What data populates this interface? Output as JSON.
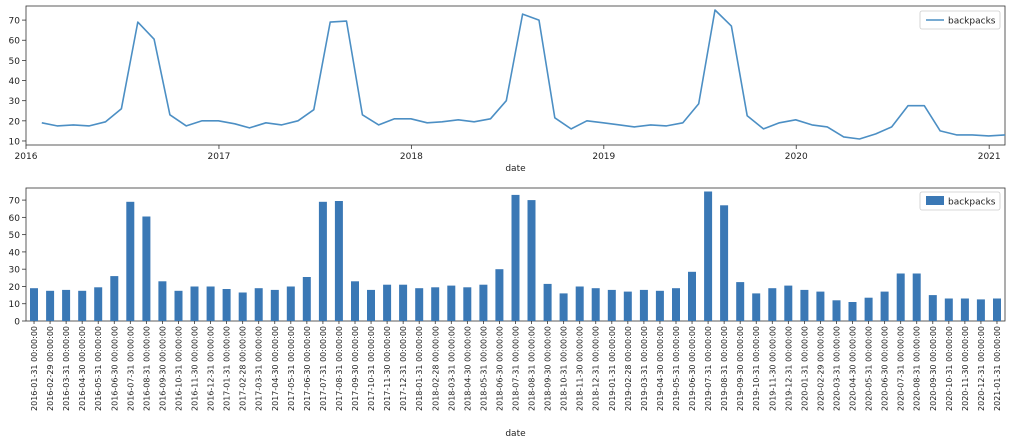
{
  "chart_data": [
    {
      "type": "line",
      "xlabel": "date",
      "ylabel": "",
      "title": "",
      "xlim": [
        "2016-01-01",
        "2021-01-31"
      ],
      "ylim": [
        8,
        77
      ],
      "yticks": [
        10,
        20,
        30,
        40,
        50,
        60,
        70
      ],
      "xtick_labels": [
        "2016",
        "2017",
        "2018",
        "2019",
        "2020",
        "2021"
      ],
      "legend": {
        "position": "top-right",
        "entries": [
          "backpacks"
        ]
      },
      "color": "#4c8fc4",
      "series": [
        {
          "name": "backpacks",
          "field": "values"
        }
      ]
    },
    {
      "type": "bar",
      "xlabel": "date",
      "ylabel": "",
      "title": "",
      "ylim": [
        0,
        77
      ],
      "yticks": [
        0,
        10,
        20,
        30,
        40,
        50,
        60,
        70
      ],
      "legend": {
        "position": "top-right",
        "entries": [
          "backpacks"
        ]
      },
      "color": "#3a78b5",
      "series": [
        {
          "name": "backpacks",
          "field": "values"
        }
      ]
    }
  ],
  "dates": [
    "2016-01-31 00:00:00",
    "2016-02-29 00:00:00",
    "2016-03-31 00:00:00",
    "2016-04-30 00:00:00",
    "2016-05-31 00:00:00",
    "2016-06-30 00:00:00",
    "2016-07-31 00:00:00",
    "2016-08-31 00:00:00",
    "2016-09-30 00:00:00",
    "2016-10-31 00:00:00",
    "2016-11-30 00:00:00",
    "2016-12-31 00:00:00",
    "2017-01-31 00:00:00",
    "2017-02-28 00:00:00",
    "2017-03-31 00:00:00",
    "2017-04-30 00:00:00",
    "2017-05-31 00:00:00",
    "2017-06-30 00:00:00",
    "2017-07-31 00:00:00",
    "2017-08-31 00:00:00",
    "2017-09-30 00:00:00",
    "2017-10-31 00:00:00",
    "2017-11-30 00:00:00",
    "2017-12-31 00:00:00",
    "2018-01-31 00:00:00",
    "2018-02-28 00:00:00",
    "2018-03-31 00:00:00",
    "2018-04-30 00:00:00",
    "2018-05-31 00:00:00",
    "2018-06-30 00:00:00",
    "2018-07-31 00:00:00",
    "2018-08-31 00:00:00",
    "2018-09-30 00:00:00",
    "2018-10-31 00:00:00",
    "2018-11-30 00:00:00",
    "2018-12-31 00:00:00",
    "2019-01-31 00:00:00",
    "2019-02-28 00:00:00",
    "2019-03-31 00:00:00",
    "2019-04-30 00:00:00",
    "2019-05-31 00:00:00",
    "2019-06-30 00:00:00",
    "2019-07-31 00:00:00",
    "2019-08-31 00:00:00",
    "2019-09-30 00:00:00",
    "2019-10-31 00:00:00",
    "2019-11-30 00:00:00",
    "2019-12-31 00:00:00",
    "2020-01-31 00:00:00",
    "2020-02-29 00:00:00",
    "2020-03-31 00:00:00",
    "2020-04-30 00:00:00",
    "2020-05-31 00:00:00",
    "2020-06-30 00:00:00",
    "2020-07-31 00:00:00",
    "2020-08-31 00:00:00",
    "2020-09-30 00:00:00",
    "2020-10-31 00:00:00",
    "2020-11-30 00:00:00",
    "2020-12-31 00:00:00",
    "2021-01-31 00:00:00"
  ],
  "values": [
    19,
    17.5,
    18,
    17.5,
    19.5,
    26,
    69,
    60.5,
    23,
    17.5,
    20,
    20,
    18.5,
    16.5,
    19,
    18,
    20,
    25.5,
    69,
    69.5,
    23,
    18,
    21,
    21,
    19,
    19.5,
    20.5,
    19.5,
    21,
    30,
    73,
    70,
    21.5,
    16,
    20,
    19,
    18,
    17,
    18,
    17.5,
    19,
    28.5,
    75,
    67,
    22.5,
    16,
    19,
    20.5,
    18,
    17,
    12,
    11,
    13.5,
    17,
    27.5,
    27.5,
    15,
    13,
    13,
    12.5,
    13
  ]
}
